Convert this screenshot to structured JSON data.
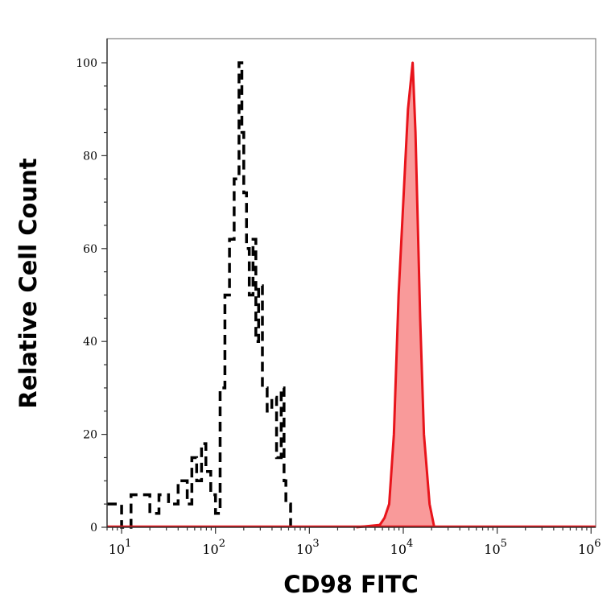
{
  "chart_data": {
    "type": "area",
    "xlabel": "CD98 FITC",
    "ylabel": "Relative Cell Count",
    "xscale": "log",
    "xlim": [
      7,
      1120000
    ],
    "ylim": [
      0,
      100
    ],
    "grid": false,
    "x_ticks": [
      {
        "base": "10",
        "exp": "1",
        "value": 10
      },
      {
        "base": "10",
        "exp": "2",
        "value": 100
      },
      {
        "base": "10",
        "exp": "3",
        "value": 1000
      },
      {
        "base": "10",
        "exp": "4",
        "value": 10000
      },
      {
        "base": "10",
        "exp": "5",
        "value": 100000
      },
      {
        "base": "10",
        "exp": "6",
        "value": 1000000
      }
    ],
    "y_ticks": [
      "0",
      "20",
      "40",
      "60",
      "80",
      "100"
    ],
    "series": [
      {
        "style": "dashed-line",
        "color": "#000000",
        "x": [
          7,
          10,
          12.6,
          20,
          25,
          31.6,
          40,
          50,
          56,
          63,
          71,
          79,
          89,
          100,
          112,
          126,
          141,
          158,
          178,
          191,
          200,
          214,
          229,
          251,
          269,
          288,
          316,
          355,
          398,
          447,
          501,
          537,
          562,
          631
        ],
        "y": [
          5,
          0,
          7,
          3,
          7,
          5,
          10,
          5,
          15,
          10,
          18,
          12,
          7,
          3,
          30,
          50,
          62,
          75,
          100,
          85,
          72,
          60,
          50,
          62,
          40,
          52,
          30,
          25,
          28,
          15,
          30,
          10,
          5,
          0
        ]
      },
      {
        "style": "filled",
        "color": "#e8141b",
        "fill": "#f99a9a",
        "x": [
          3162,
          5623,
          6310,
          7079,
          7943,
          8913,
          10000,
          11220,
          12589,
          13490,
          15136,
          16596,
          19055,
          21380
        ],
        "y": [
          0,
          0.5,
          2,
          5,
          20,
          50,
          70,
          90,
          100,
          85,
          45,
          20,
          5,
          0
        ]
      }
    ]
  }
}
